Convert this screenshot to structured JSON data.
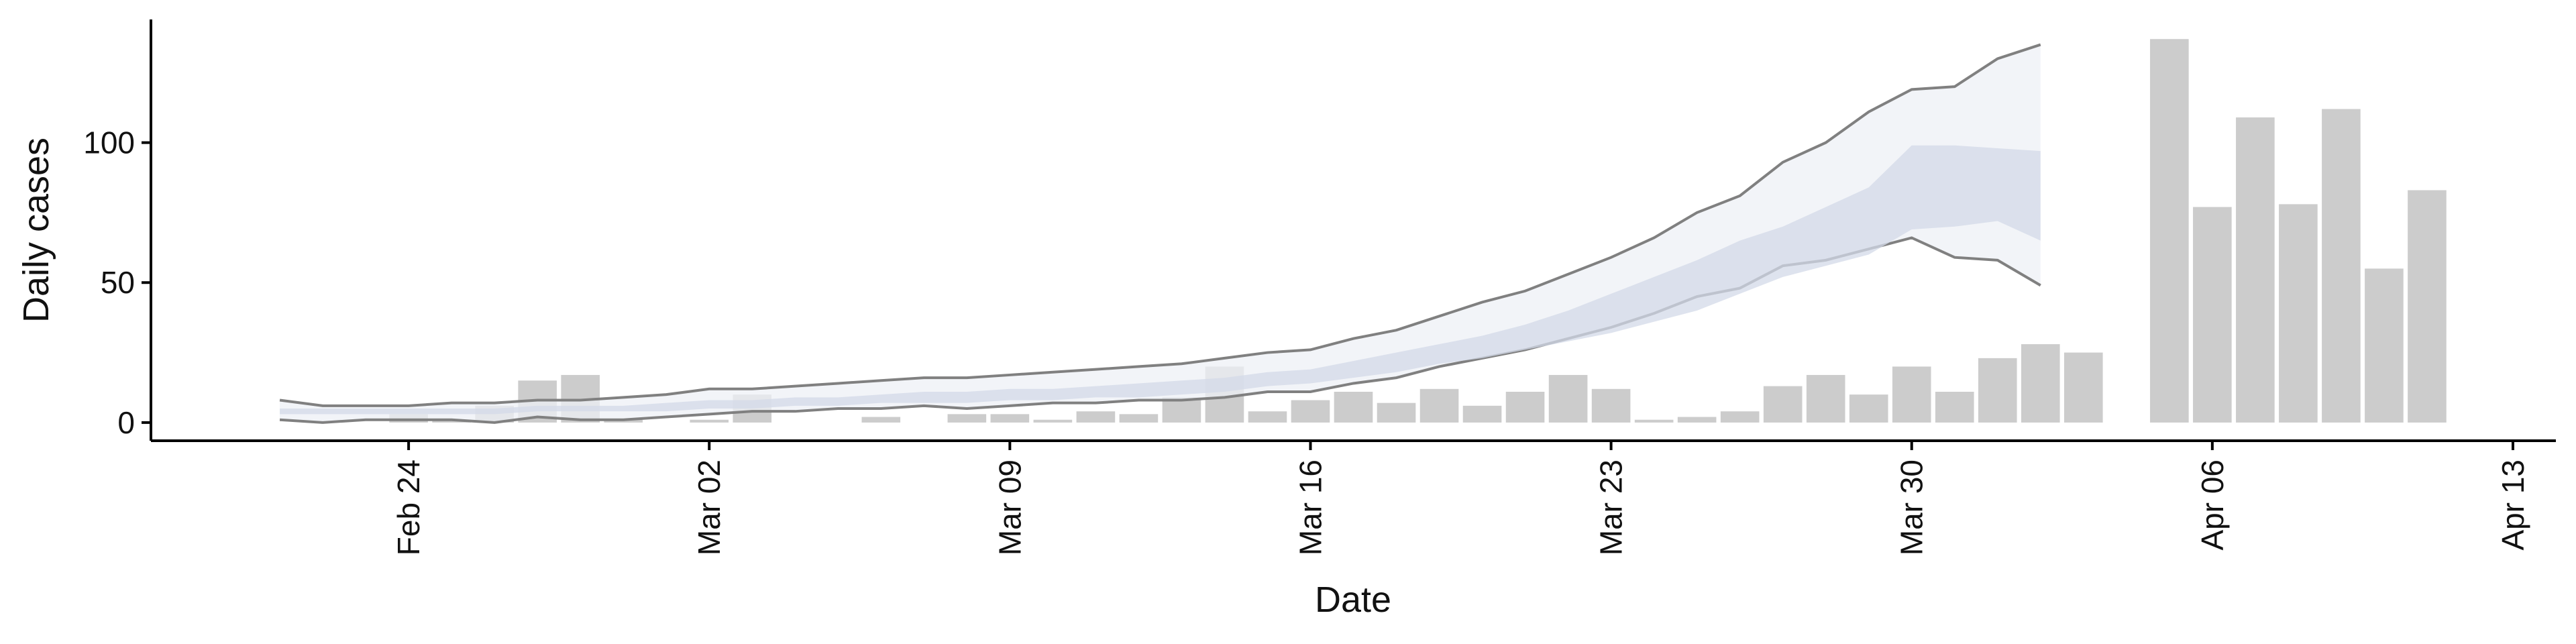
{
  "chart_data": {
    "type": "bar",
    "x_label": "Date",
    "y_label": "Daily cases",
    "x": [
      "Feb 18",
      "Feb 19",
      "Feb 20",
      "Feb 21",
      "Feb 22",
      "Feb 23",
      "Feb 24",
      "Feb 25",
      "Feb 26",
      "Feb 27",
      "Feb 28",
      "Feb 29",
      "Mar 01",
      "Mar 02",
      "Mar 03",
      "Mar 04",
      "Mar 05",
      "Mar 06",
      "Mar 07",
      "Mar 08",
      "Mar 09",
      "Mar 10",
      "Mar 11",
      "Mar 12",
      "Mar 13",
      "Mar 14",
      "Mar 15",
      "Mar 16",
      "Mar 17",
      "Mar 18",
      "Mar 19",
      "Mar 20",
      "Mar 21",
      "Mar 22",
      "Mar 23",
      "Mar 24",
      "Mar 25",
      "Mar 26",
      "Mar 27",
      "Mar 28",
      "Mar 29",
      "Mar 30",
      "Mar 31",
      "Apr 01",
      "Apr 02",
      "Apr 03",
      "Apr 04",
      "Apr 05",
      "Apr 06",
      "Apr 07",
      "Apr 08",
      "Apr 09",
      "Apr 10",
      "Apr 11",
      "Apr 12",
      "Apr 13",
      "Apr 14"
    ],
    "bars": {
      "color": "#cccccc",
      "values": [
        null,
        null,
        null,
        null,
        null,
        null,
        3,
        1,
        6,
        15,
        17,
        1,
        0,
        1,
        10,
        0,
        0,
        2,
        0,
        3,
        3,
        1,
        4,
        3,
        9,
        20,
        4,
        8,
        11,
        7,
        12,
        6,
        11,
        17,
        12,
        1,
        2,
        4,
        13,
        17,
        10,
        20,
        11,
        23,
        28,
        25,
        null,
        137,
        77,
        109,
        78,
        112,
        55,
        83,
        null,
        null,
        null
      ]
    },
    "ribbons": [
      {
        "color": "#eef0f6",
        "edge_color": "#808080",
        "upper": [
          null,
          null,
          null,
          8,
          6,
          6,
          6,
          7,
          7,
          8,
          8,
          9,
          10,
          12,
          12,
          13,
          14,
          15,
          16,
          16,
          17,
          18,
          19,
          20,
          21,
          23,
          25,
          26,
          30,
          33,
          38,
          43,
          47,
          53,
          59,
          66,
          75,
          81,
          93,
          100,
          111,
          119,
          120,
          130,
          135,
          null,
          null,
          null,
          null,
          null,
          null,
          null,
          null,
          null,
          null,
          null,
          null
        ],
        "lower": [
          null,
          null,
          null,
          1,
          0,
          1,
          1,
          1,
          0,
          2,
          1,
          1,
          2,
          3,
          4,
          4,
          5,
          5,
          6,
          5,
          6,
          7,
          7,
          8,
          8,
          9,
          11,
          11,
          14,
          16,
          20,
          23,
          26,
          30,
          34,
          39,
          45,
          48,
          56,
          58,
          62,
          66,
          59,
          58,
          49,
          null,
          null,
          null,
          null,
          null,
          null,
          null,
          null,
          null,
          null,
          null,
          null
        ]
      },
      {
        "color": "#d3d9e8",
        "upper": [
          null,
          null,
          null,
          5,
          5,
          5,
          5,
          5,
          5,
          6,
          6,
          6,
          7,
          8,
          8,
          9,
          9,
          10,
          11,
          11,
          12,
          12,
          13,
          14,
          15,
          16,
          18,
          19,
          22,
          25,
          28,
          31,
          35,
          40,
          46,
          52,
          58,
          65,
          70,
          77,
          84,
          99,
          99,
          98,
          97,
          null,
          null,
          null,
          null,
          null,
          null,
          null,
          null,
          null,
          null,
          null,
          null
        ],
        "lower": [
          null,
          null,
          null,
          3,
          3,
          3,
          3,
          3,
          3,
          4,
          4,
          4,
          4,
          5,
          5,
          6,
          6,
          7,
          7,
          7,
          8,
          8,
          9,
          9,
          10,
          11,
          13,
          14,
          16,
          18,
          21,
          23,
          26,
          29,
          32,
          36,
          40,
          46,
          52,
          56,
          60,
          69,
          70,
          72,
          65,
          null,
          null,
          null,
          null,
          null,
          null,
          null,
          null,
          null,
          null,
          null,
          null
        ]
      }
    ],
    "xlim": [
      "Feb 18",
      "Apr 14"
    ],
    "xticks": [
      "Feb 24",
      "Mar 02",
      "Mar 09",
      "Mar 16",
      "Mar 23",
      "Mar 30",
      "Apr 06",
      "Apr 13"
    ],
    "ylim": [
      -6.5,
      144
    ],
    "yticks": [
      0,
      50,
      100
    ]
  }
}
